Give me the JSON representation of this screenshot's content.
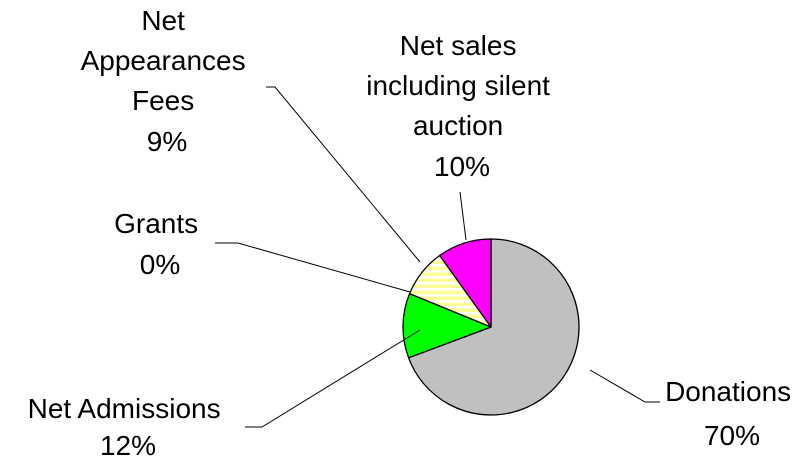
{
  "chart_data": {
    "type": "pie",
    "slices": [
      {
        "label": "Donations",
        "value": 70,
        "pct_label": "70%",
        "color": "#c0c0c0"
      },
      {
        "label": "Net Admissions",
        "value": 12,
        "pct_label": "12%",
        "color": "#00ff00"
      },
      {
        "label": "Grants",
        "value": 0,
        "pct_label": "0%",
        "color": "#0000ff"
      },
      {
        "label": "Net Appearances Fees",
        "value": 9,
        "pct_label": "9%",
        "color": "#ffff99",
        "pattern": "horizontal-stripes"
      },
      {
        "label": "Net sales including silent auction",
        "value": 10,
        "pct_label": "10%",
        "color": "#ff00ff"
      }
    ],
    "label_lines": {
      "donations": [
        "Donations",
        "70%"
      ],
      "net_admissions": [
        "Net Admissions",
        "12%"
      ],
      "grants": [
        "Grants",
        "0%"
      ],
      "net_appearances": [
        "Net",
        "Appearances",
        "Fees",
        "9%"
      ],
      "net_sales": [
        "Net sales",
        "including silent",
        "auction",
        "10%"
      ]
    },
    "title": "",
    "legend": "none"
  }
}
